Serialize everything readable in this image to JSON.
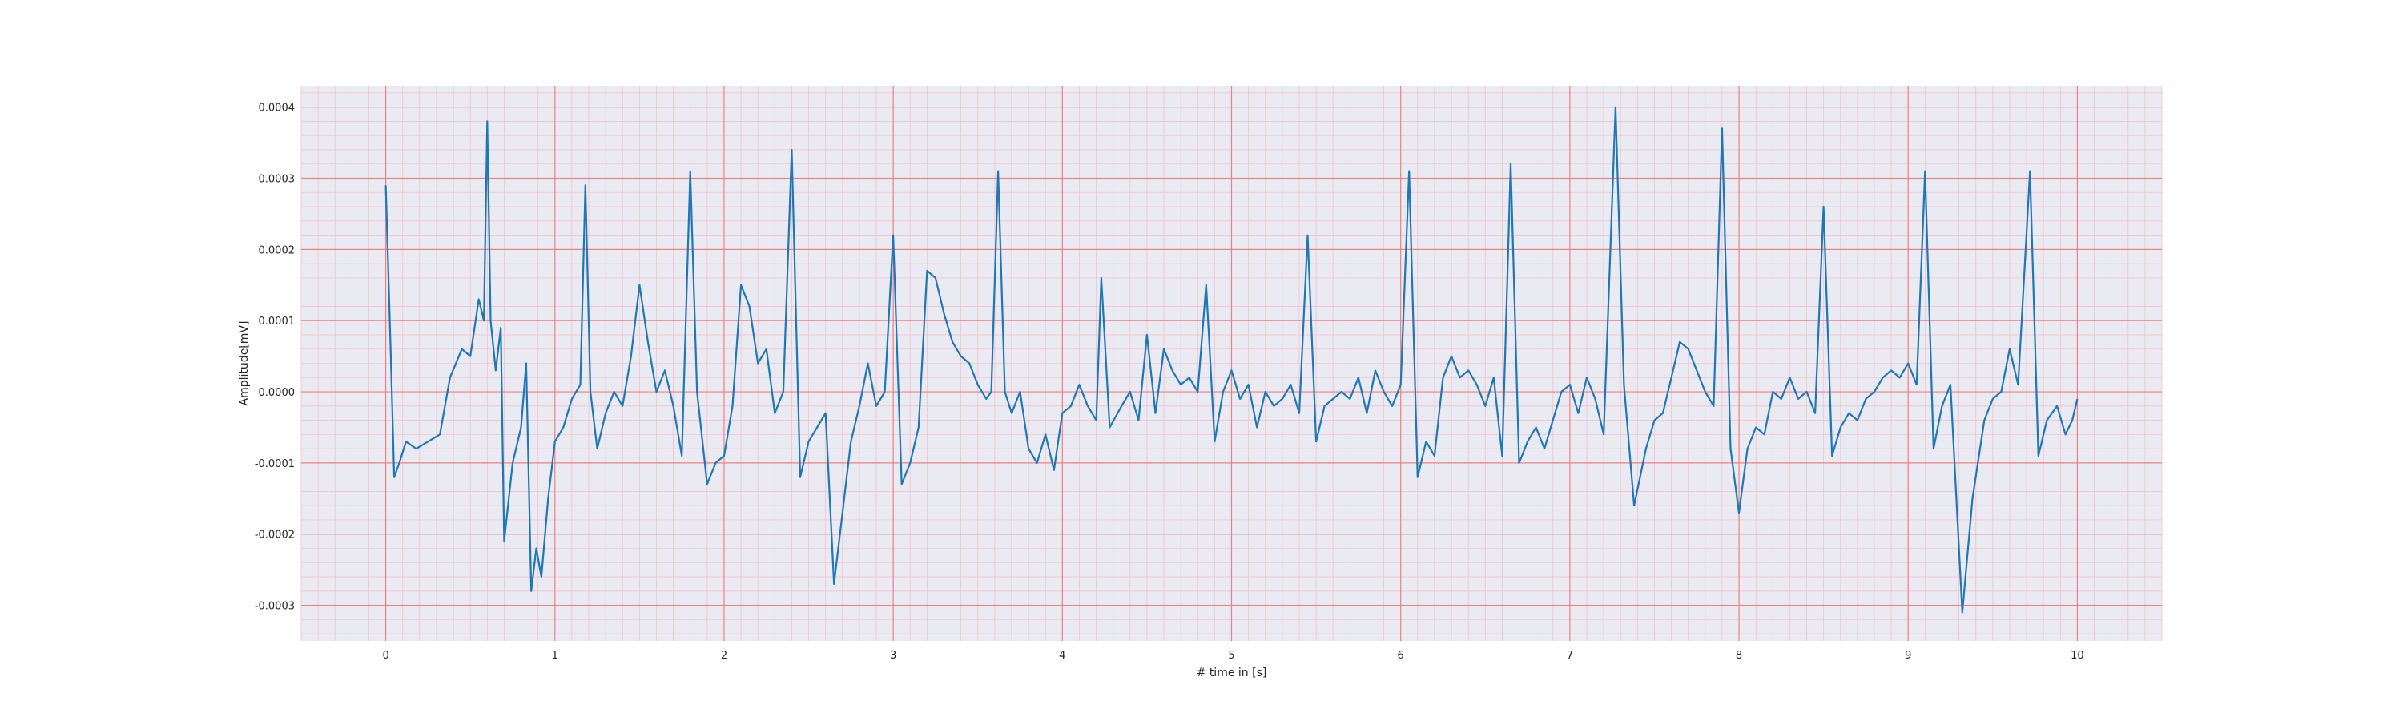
{
  "chart_data": {
    "type": "line",
    "title": "",
    "xlabel": "# time in [s]",
    "ylabel": "Amplitude[mV]",
    "xlim": [
      -0.5,
      10.5
    ],
    "ylim": [
      -0.00035,
      0.00043
    ],
    "x_ticks": [
      0,
      1,
      2,
      3,
      4,
      5,
      6,
      7,
      8,
      9,
      10
    ],
    "x_tick_labels": [
      "0",
      "1",
      "2",
      "3",
      "4",
      "5",
      "6",
      "7",
      "8",
      "9",
      "10"
    ],
    "y_ticks": [
      -0.0003,
      -0.0002,
      -0.0001,
      0.0,
      0.0001,
      0.0002,
      0.0003,
      0.0004
    ],
    "y_tick_labels": [
      "-0.0003",
      "-0.0002",
      "-0.0001",
      "0.0000",
      "0.0001",
      "0.0002",
      "0.0003",
      "0.0004"
    ],
    "grid": {
      "major": true,
      "minor": true,
      "major_color": "#f08080",
      "minor_color": "#f4c2cc"
    },
    "background_color": "#eaeaf2",
    "series": [
      {
        "color": "#1f77b4",
        "points": [
          [
            0.0,
            0.00029
          ],
          [
            0.03,
            5e-05
          ],
          [
            0.05,
            -0.00012
          ],
          [
            0.08,
            -0.0001
          ],
          [
            0.12,
            -7e-05
          ],
          [
            0.18,
            -8e-05
          ],
          [
            0.25,
            -7e-05
          ],
          [
            0.32,
            -6e-05
          ],
          [
            0.38,
            2e-05
          ],
          [
            0.45,
            6e-05
          ],
          [
            0.5,
            5e-05
          ],
          [
            0.55,
            0.00013
          ],
          [
            0.58,
            0.0001
          ],
          [
            0.6,
            0.00038
          ],
          [
            0.62,
            0.0001
          ],
          [
            0.65,
            3e-05
          ],
          [
            0.68,
            9e-05
          ],
          [
            0.7,
            -0.00021
          ],
          [
            0.75,
            -0.0001
          ],
          [
            0.8,
            -5e-05
          ],
          [
            0.83,
            4e-05
          ],
          [
            0.86,
            -0.00028
          ],
          [
            0.89,
            -0.00022
          ],
          [
            0.92,
            -0.00026
          ],
          [
            0.96,
            -0.00015
          ],
          [
            1.0,
            -7e-05
          ],
          [
            1.05,
            -5e-05
          ],
          [
            1.1,
            -1e-05
          ],
          [
            1.15,
            1e-05
          ],
          [
            1.18,
            0.00029
          ],
          [
            1.21,
            0.0
          ],
          [
            1.25,
            -8e-05
          ],
          [
            1.3,
            -3e-05
          ],
          [
            1.35,
            0.0
          ],
          [
            1.4,
            -2e-05
          ],
          [
            1.45,
            5e-05
          ],
          [
            1.5,
            0.00015
          ],
          [
            1.55,
            7e-05
          ],
          [
            1.6,
            0.0
          ],
          [
            1.65,
            3e-05
          ],
          [
            1.7,
            -2e-05
          ],
          [
            1.75,
            -9e-05
          ],
          [
            1.8,
            0.00031
          ],
          [
            1.84,
            0.0
          ],
          [
            1.9,
            -0.00013
          ],
          [
            1.95,
            -0.0001
          ],
          [
            2.0,
            -9e-05
          ],
          [
            2.05,
            -2e-05
          ],
          [
            2.1,
            0.00015
          ],
          [
            2.15,
            0.00012
          ],
          [
            2.2,
            4e-05
          ],
          [
            2.25,
            6e-05
          ],
          [
            2.3,
            -3e-05
          ],
          [
            2.35,
            0.0
          ],
          [
            2.4,
            0.00034
          ],
          [
            2.45,
            -0.00012
          ],
          [
            2.5,
            -7e-05
          ],
          [
            2.55,
            -5e-05
          ],
          [
            2.6,
            -3e-05
          ],
          [
            2.65,
            -0.00027
          ],
          [
            2.7,
            -0.00017
          ],
          [
            2.75,
            -7e-05
          ],
          [
            2.8,
            -2e-05
          ],
          [
            2.85,
            4e-05
          ],
          [
            2.9,
            -2e-05
          ],
          [
            2.95,
            0.0
          ],
          [
            3.0,
            0.00022
          ],
          [
            3.05,
            -0.00013
          ],
          [
            3.1,
            -0.0001
          ],
          [
            3.15,
            -5e-05
          ],
          [
            3.2,
            0.00017
          ],
          [
            3.25,
            0.00016
          ],
          [
            3.3,
            0.00011
          ],
          [
            3.35,
            7e-05
          ],
          [
            3.4,
            5e-05
          ],
          [
            3.45,
            4e-05
          ],
          [
            3.5,
            1e-05
          ],
          [
            3.55,
            -1e-05
          ],
          [
            3.58,
            0.0
          ],
          [
            3.62,
            0.00031
          ],
          [
            3.66,
            0.0
          ],
          [
            3.7,
            -3e-05
          ],
          [
            3.75,
            0.0
          ],
          [
            3.8,
            -8e-05
          ],
          [
            3.85,
            -0.0001
          ],
          [
            3.9,
            -6e-05
          ],
          [
            3.95,
            -0.00011
          ],
          [
            4.0,
            -3e-05
          ],
          [
            4.05,
            -2e-05
          ],
          [
            4.1,
            1e-05
          ],
          [
            4.15,
            -2e-05
          ],
          [
            4.2,
            -4e-05
          ],
          [
            4.23,
            0.00016
          ],
          [
            4.28,
            -5e-05
          ],
          [
            4.35,
            -2e-05
          ],
          [
            4.4,
            0.0
          ],
          [
            4.45,
            -4e-05
          ],
          [
            4.5,
            8e-05
          ],
          [
            4.55,
            -3e-05
          ],
          [
            4.6,
            6e-05
          ],
          [
            4.65,
            3e-05
          ],
          [
            4.7,
            1e-05
          ],
          [
            4.75,
            2e-05
          ],
          [
            4.8,
            0.0
          ],
          [
            4.85,
            0.00015
          ],
          [
            4.9,
            -7e-05
          ],
          [
            4.95,
            0.0
          ],
          [
            5.0,
            3e-05
          ],
          [
            5.05,
            -1e-05
          ],
          [
            5.1,
            1e-05
          ],
          [
            5.15,
            -5e-05
          ],
          [
            5.2,
            0.0
          ],
          [
            5.25,
            -2e-05
          ],
          [
            5.3,
            -1e-05
          ],
          [
            5.35,
            1e-05
          ],
          [
            5.4,
            -3e-05
          ],
          [
            5.45,
            0.00022
          ],
          [
            5.5,
            -7e-05
          ],
          [
            5.55,
            -2e-05
          ],
          [
            5.6,
            -1e-05
          ],
          [
            5.65,
            0.0
          ],
          [
            5.7,
            -1e-05
          ],
          [
            5.75,
            2e-05
          ],
          [
            5.8,
            -3e-05
          ],
          [
            5.85,
            3e-05
          ],
          [
            5.9,
            0.0
          ],
          [
            5.95,
            -2e-05
          ],
          [
            6.0,
            1e-05
          ],
          [
            6.05,
            0.00031
          ],
          [
            6.1,
            -0.00012
          ],
          [
            6.15,
            -7e-05
          ],
          [
            6.2,
            -9e-05
          ],
          [
            6.25,
            2e-05
          ],
          [
            6.3,
            5e-05
          ],
          [
            6.35,
            2e-05
          ],
          [
            6.4,
            3e-05
          ],
          [
            6.45,
            1e-05
          ],
          [
            6.5,
            -2e-05
          ],
          [
            6.55,
            2e-05
          ],
          [
            6.6,
            -9e-05
          ],
          [
            6.65,
            0.00032
          ],
          [
            6.7,
            -0.0001
          ],
          [
            6.75,
            -7e-05
          ],
          [
            6.8,
            -5e-05
          ],
          [
            6.85,
            -8e-05
          ],
          [
            6.9,
            -4e-05
          ],
          [
            6.95,
            0.0
          ],
          [
            7.0,
            1e-05
          ],
          [
            7.05,
            -3e-05
          ],
          [
            7.1,
            2e-05
          ],
          [
            7.15,
            -1e-05
          ],
          [
            7.2,
            -6e-05
          ],
          [
            7.27,
            0.0004
          ],
          [
            7.32,
            1e-05
          ],
          [
            7.38,
            -0.00016
          ],
          [
            7.45,
            -8e-05
          ],
          [
            7.5,
            -4e-05
          ],
          [
            7.55,
            -3e-05
          ],
          [
            7.6,
            2e-05
          ],
          [
            7.65,
            7e-05
          ],
          [
            7.7,
            6e-05
          ],
          [
            7.75,
            3e-05
          ],
          [
            7.8,
            0.0
          ],
          [
            7.85,
            -2e-05
          ],
          [
            7.9,
            0.00037
          ],
          [
            7.95,
            -8e-05
          ],
          [
            8.0,
            -0.00017
          ],
          [
            8.05,
            -8e-05
          ],
          [
            8.1,
            -5e-05
          ],
          [
            8.15,
            -6e-05
          ],
          [
            8.2,
            0.0
          ],
          [
            8.25,
            -1e-05
          ],
          [
            8.3,
            2e-05
          ],
          [
            8.35,
            -1e-05
          ],
          [
            8.4,
            0.0
          ],
          [
            8.45,
            -3e-05
          ],
          [
            8.5,
            0.00026
          ],
          [
            8.55,
            -9e-05
          ],
          [
            8.6,
            -5e-05
          ],
          [
            8.65,
            -3e-05
          ],
          [
            8.7,
            -4e-05
          ],
          [
            8.75,
            -1e-05
          ],
          [
            8.8,
            0.0
          ],
          [
            8.85,
            2e-05
          ],
          [
            8.9,
            3e-05
          ],
          [
            8.95,
            2e-05
          ],
          [
            9.0,
            4e-05
          ],
          [
            9.05,
            1e-05
          ],
          [
            9.1,
            0.00031
          ],
          [
            9.15,
            -8e-05
          ],
          [
            9.2,
            -2e-05
          ],
          [
            9.25,
            1e-05
          ],
          [
            9.32,
            -0.00031
          ],
          [
            9.38,
            -0.00015
          ],
          [
            9.45,
            -4e-05
          ],
          [
            9.5,
            -1e-05
          ],
          [
            9.55,
            0.0
          ],
          [
            9.6,
            6e-05
          ],
          [
            9.65,
            1e-05
          ],
          [
            9.72,
            0.00031
          ],
          [
            9.77,
            -9e-05
          ],
          [
            9.82,
            -4e-05
          ],
          [
            9.88,
            -2e-05
          ],
          [
            9.93,
            -6e-05
          ],
          [
            9.97,
            -4e-05
          ],
          [
            10.0,
            -1e-05
          ]
        ]
      }
    ]
  }
}
